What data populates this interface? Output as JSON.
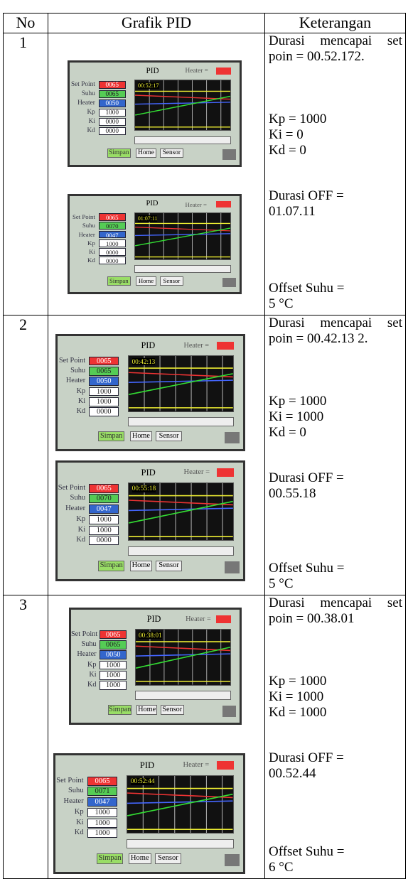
{
  "table": {
    "header": [
      "No",
      "Grafik PID",
      "Keterangan"
    ],
    "screen_labels": {
      "title": "PID",
      "heater_flag": "Heater =",
      "set_point": "Set Point",
      "suhu": "Suhu",
      "heater": "Heater",
      "kp": "Kp",
      "ki": "Ki",
      "kd": "Kd",
      "save": "Simpan",
      "home": "Home",
      "sensor": "Sensor"
    },
    "rows": [
      {
        "no": "1",
        "screens": [
          {
            "set_point": "0065",
            "suhu": "0065",
            "heater": "0050",
            "kp": "1000",
            "ki": "0000",
            "kd": "0000",
            "time": "00:52:17"
          },
          {
            "set_point": "0065",
            "suhu": "0070",
            "heater": "0047",
            "kp": "1000",
            "ki": "0000",
            "kd": "0000",
            "time": "01:07:11"
          }
        ],
        "keterangan": {
          "reach": "Durasi mencapai set poin = 00.52.172.",
          "kp": "Kp = 1000",
          "ki": "Ki = 0",
          "kd": "Kd = 0",
          "off": "Durasi OFF = 01.07.11",
          "offset": "Offset Suhu = 5 °C"
        }
      },
      {
        "no": "2",
        "screens": [
          {
            "set_point": "0065",
            "suhu": "0065",
            "heater": "0050",
            "kp": "1000",
            "ki": "1000",
            "kd": "0000",
            "time": "00:42:13"
          },
          {
            "set_point": "0065",
            "suhu": "0070",
            "heater": "0047",
            "kp": "1000",
            "ki": "1000",
            "kd": "0000",
            "time": "00:55:18"
          }
        ],
        "keterangan": {
          "reach": "Durasi mencapai set poin = 00.42.13 2.",
          "kp": "Kp = 1000",
          "ki": "Ki = 1000",
          "kd": "Kd = 0",
          "off": "Durasi OFF = 00.55.18",
          "offset": "Offset Suhu = 5 °C"
        }
      },
      {
        "no": "3",
        "screens": [
          {
            "set_point": "0065",
            "suhu": "0065",
            "heater": "0050",
            "kp": "1000",
            "ki": "1000",
            "kd": "1000",
            "time": "00:38:01"
          },
          {
            "set_point": "0065",
            "suhu": "0071",
            "heater": "0047",
            "kp": "1000",
            "ki": "1000",
            "kd": "1000",
            "time": "00:52:44"
          }
        ],
        "keterangan": {
          "reach": "Durasi mencapai set poin = 00.38.01",
          "kp": "Kp = 1000",
          "ki": "Ki = 1000",
          "kd": "Kd = 1000",
          "off": "Durasi OFF = 00.52.44",
          "offset": "Offset Suhu = 6 °C"
        }
      }
    ]
  }
}
